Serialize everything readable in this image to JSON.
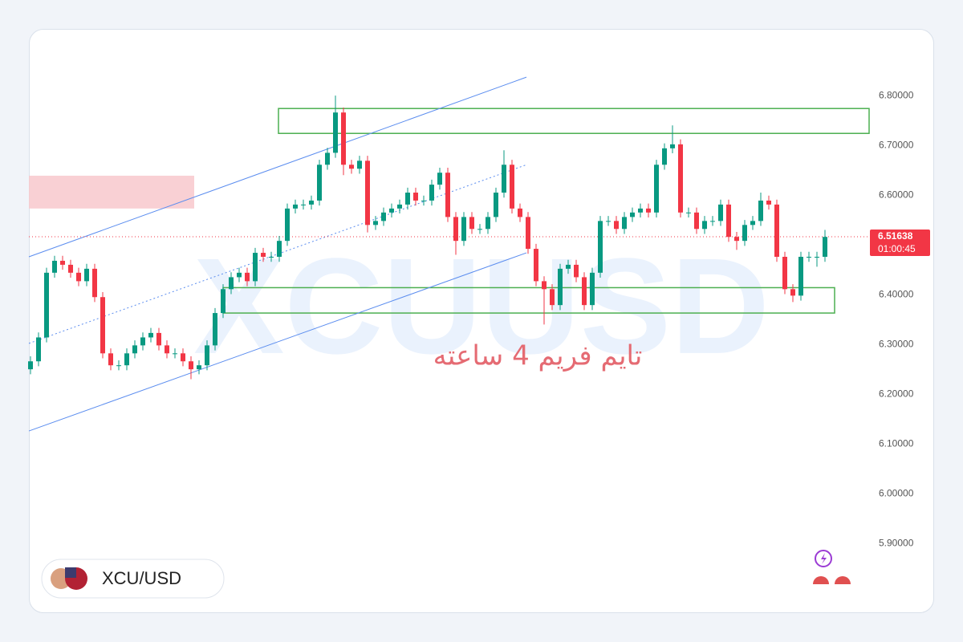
{
  "chart_data": {
    "type": "candlestick",
    "symbol": "XCU/USD",
    "watermark": "XCUUSD",
    "annotation": "تایم فریم 4 ساعته",
    "last_price": 6.51638,
    "countdown": "01:00:45",
    "up_color": "#089981",
    "down_color": "#f23645",
    "ylim": [
      5.76,
      6.934
    ],
    "yticks": [
      {
        "value": 6.8,
        "label": "6.80000"
      },
      {
        "value": 6.7,
        "label": "6.70000"
      },
      {
        "value": 6.6,
        "label": "6.60000"
      },
      {
        "value": 6.5,
        "label": "6.50000"
      },
      {
        "value": 6.4,
        "label": "6.40000"
      },
      {
        "value": 6.3,
        "label": "6.30000"
      },
      {
        "value": 6.2,
        "label": "6.20000"
      },
      {
        "value": 6.1,
        "label": "6.10000"
      },
      {
        "value": 6.0,
        "label": "6.00000"
      },
      {
        "value": 5.9,
        "label": "5.90000"
      }
    ],
    "open": [
      6.25,
      6.266,
      6.314,
      6.444,
      6.468,
      6.46,
      6.444,
      6.427,
      6.452,
      6.395,
      6.282,
      6.258,
      6.258,
      6.282,
      6.298,
      6.314,
      6.323,
      6.298,
      6.282,
      6.282,
      6.266,
      6.25,
      6.258,
      6.298,
      6.363,
      6.411,
      6.435,
      6.444,
      6.427,
      6.484,
      6.476,
      6.476,
      6.508,
      6.573,
      6.581,
      6.581,
      6.589,
      6.661,
      6.685,
      6.766,
      6.661,
      6.653,
      6.669,
      6.54,
      6.548,
      6.565,
      6.573,
      6.581,
      6.605,
      6.589,
      6.589,
      6.621,
      6.645,
      6.556,
      6.508,
      6.556,
      6.532,
      6.532,
      6.556,
      6.605,
      6.661,
      6.573,
      6.556,
      6.492,
      6.427,
      6.411,
      6.379,
      6.452,
      6.46,
      6.435,
      6.379,
      6.444,
      6.548,
      6.548,
      6.532,
      6.556,
      6.565,
      6.573,
      6.565,
      6.661,
      6.694,
      6.702,
      6.565,
      6.565,
      6.532,
      6.548,
      6.548,
      6.581,
      6.516,
      6.508,
      6.54,
      6.548,
      6.589,
      6.581,
      6.476,
      6.411,
      6.398,
      6.476,
      6.476,
      6.476
    ],
    "high": [
      6.276,
      6.324,
      6.454,
      6.478,
      6.478,
      6.47,
      6.454,
      6.462,
      6.462,
      6.405,
      6.292,
      6.268,
      6.292,
      6.308,
      6.324,
      6.333,
      6.333,
      6.308,
      6.292,
      6.292,
      6.276,
      6.268,
      6.308,
      6.373,
      6.421,
      6.445,
      6.454,
      6.454,
      6.494,
      6.494,
      6.486,
      6.518,
      6.583,
      6.591,
      6.591,
      6.599,
      6.671,
      6.695,
      6.8,
      6.776,
      6.671,
      6.679,
      6.679,
      6.558,
      6.575,
      6.583,
      6.591,
      6.615,
      6.615,
      6.599,
      6.631,
      6.655,
      6.655,
      6.566,
      6.566,
      6.566,
      6.542,
      6.566,
      6.615,
      6.69,
      6.671,
      6.583,
      6.566,
      6.502,
      6.437,
      6.421,
      6.462,
      6.47,
      6.47,
      6.445,
      6.454,
      6.558,
      6.558,
      6.558,
      6.566,
      6.575,
      6.583,
      6.583,
      6.671,
      6.704,
      6.74,
      6.712,
      6.575,
      6.575,
      6.558,
      6.558,
      6.591,
      6.591,
      6.526,
      6.55,
      6.558,
      6.605,
      6.599,
      6.591,
      6.486,
      6.421,
      6.486,
      6.486,
      6.486,
      6.53
    ],
    "low": [
      6.24,
      6.256,
      6.304,
      6.434,
      6.45,
      6.434,
      6.417,
      6.417,
      6.385,
      6.272,
      6.248,
      6.248,
      6.248,
      6.272,
      6.288,
      6.304,
      6.288,
      6.272,
      6.272,
      6.256,
      6.23,
      6.24,
      6.248,
      6.288,
      6.353,
      6.401,
      6.425,
      6.417,
      6.417,
      6.466,
      6.466,
      6.466,
      6.498,
      6.563,
      6.571,
      6.571,
      6.579,
      6.651,
      6.675,
      6.64,
      6.643,
      6.643,
      6.525,
      6.53,
      6.538,
      6.555,
      6.563,
      6.571,
      6.579,
      6.579,
      6.579,
      6.611,
      6.546,
      6.48,
      6.498,
      6.522,
      6.522,
      6.522,
      6.546,
      6.595,
      6.563,
      6.546,
      6.482,
      6.417,
      6.34,
      6.369,
      6.369,
      6.442,
      6.425,
      6.369,
      6.369,
      6.434,
      6.538,
      6.522,
      6.522,
      6.546,
      6.555,
      6.555,
      6.555,
      6.651,
      6.684,
      6.555,
      6.555,
      6.522,
      6.522,
      6.538,
      6.538,
      6.506,
      6.49,
      6.498,
      6.53,
      6.538,
      6.571,
      6.466,
      6.401,
      6.385,
      6.388,
      6.466,
      6.456,
      6.466
    ],
    "close": [
      6.266,
      6.314,
      6.444,
      6.468,
      6.46,
      6.444,
      6.427,
      6.452,
      6.395,
      6.282,
      6.258,
      6.258,
      6.282,
      6.298,
      6.314,
      6.323,
      6.298,
      6.282,
      6.282,
      6.266,
      6.25,
      6.258,
      6.298,
      6.363,
      6.411,
      6.435,
      6.444,
      6.427,
      6.484,
      6.476,
      6.476,
      6.508,
      6.573,
      6.581,
      6.581,
      6.589,
      6.661,
      6.685,
      6.766,
      6.661,
      6.653,
      6.669,
      6.54,
      6.548,
      6.565,
      6.573,
      6.581,
      6.605,
      6.589,
      6.589,
      6.621,
      6.645,
      6.556,
      6.508,
      6.556,
      6.532,
      6.532,
      6.556,
      6.605,
      6.661,
      6.573,
      6.556,
      6.492,
      6.427,
      6.411,
      6.379,
      6.452,
      6.46,
      6.435,
      6.379,
      6.444,
      6.548,
      6.548,
      6.532,
      6.556,
      6.565,
      6.573,
      6.565,
      6.661,
      6.694,
      6.702,
      6.565,
      6.565,
      6.532,
      6.548,
      6.548,
      6.581,
      6.516,
      6.508,
      6.54,
      6.548,
      6.589,
      6.581,
      6.476,
      6.411,
      6.398,
      6.476,
      6.476,
      6.476,
      6.516
    ],
    "zones": [
      {
        "color": "#f8c8cc",
        "range": [
          6.573,
          6.639
        ]
      },
      {
        "color": "#4caf50",
        "range": [
          6.724,
          6.774
        ]
      },
      {
        "color": "#4caf50",
        "range": [
          6.363,
          6.414
        ]
      }
    ],
    "channel": {
      "color": "#5b8def",
      "upper": [
        6.476,
        6.837
      ],
      "middle": [
        6.302,
        6.661
      ],
      "lower": [
        6.126,
        6.484
      ]
    }
  }
}
